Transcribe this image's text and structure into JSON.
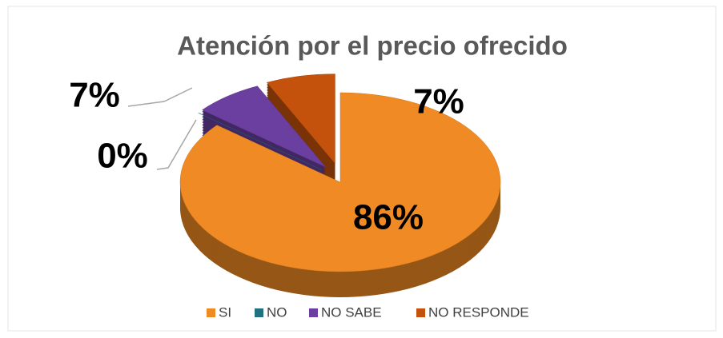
{
  "chart_data": {
    "type": "pie",
    "title": "Atención por el precio ofrecido",
    "categories": [
      "SI",
      "NO",
      "NO SABE",
      "NO RESPONDE"
    ],
    "values": [
      86,
      0,
      7,
      7
    ],
    "value_labels": [
      "86%",
      "0%",
      "7%",
      "7%"
    ],
    "colors": [
      "#f08a24",
      "#1f7080",
      "#6b3fa0",
      "#c4520c"
    ],
    "legend": "bottom"
  }
}
